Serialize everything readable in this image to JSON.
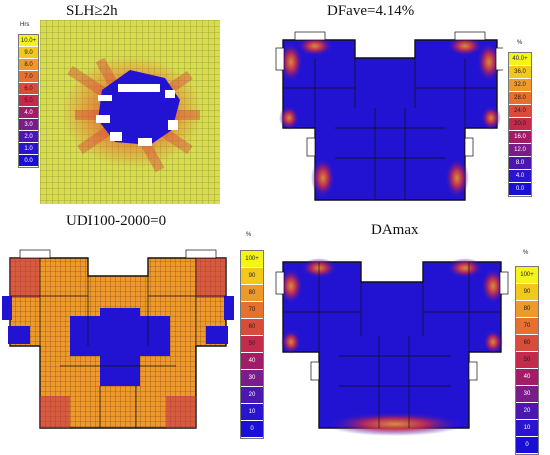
{
  "panels": {
    "slh": {
      "title": "SLH≥2h",
      "unit": "Hrs",
      "legend": [
        "10.0+",
        "9.0",
        "8.0",
        "7.0",
        "6.0",
        "5.0",
        "4.0",
        "3.0",
        "2.0",
        "1.0",
        "0.0"
      ]
    },
    "dfave": {
      "title": "DFave=4.14%",
      "unit": "%",
      "legend": [
        "40.0+",
        "36.0",
        "32.0",
        "28.0",
        "24.0",
        "20.0",
        "16.0",
        "12.0",
        "8.0",
        "4.0",
        "0.0"
      ]
    },
    "udi": {
      "title": "UDI100-2000=0",
      "unit": "%",
      "legend": [
        "100+",
        "90",
        "80",
        "70",
        "60",
        "50",
        "40",
        "30",
        "20",
        "10",
        "0"
      ]
    },
    "damax": {
      "title": "DAmax",
      "unit": "%",
      "legend": [
        "100+",
        "90",
        "80",
        "70",
        "60",
        "50",
        "40",
        "30",
        "20",
        "10",
        "0"
      ]
    }
  },
  "colors": {
    "scale": [
      "#f4f419",
      "#f2c91a",
      "#ee9a2a",
      "#e6702f",
      "#d94c3c",
      "#c42a4c",
      "#a21d67",
      "#7a1c8a",
      "#4a18b0",
      "#2a14d0",
      "#1a0fd6"
    ],
    "plan_blue": "#2213d2",
    "ground_yellow": "#d9dc4f",
    "wall": "#111111"
  }
}
